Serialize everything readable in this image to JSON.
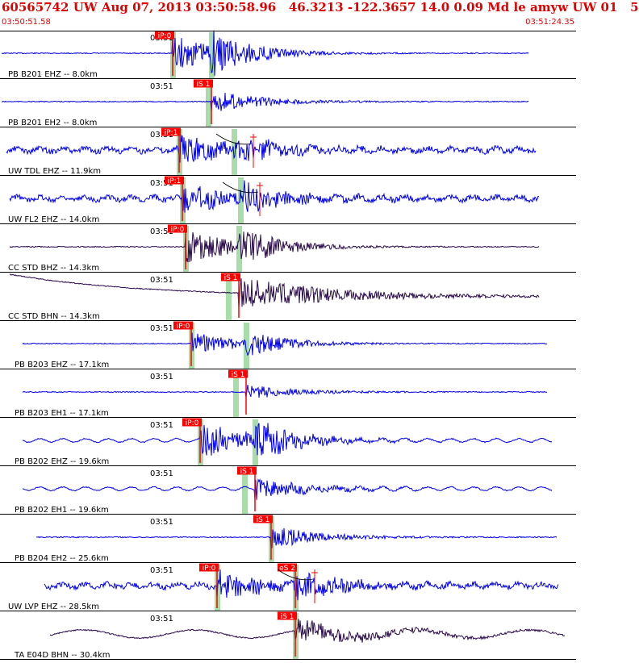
{
  "header": {
    "title": "60565742 UW Aug 07, 2013 03:50:58.96   46.3213 -122.3657 14.0 0.09 Md le amyw UW 01   5",
    "start_time": "03:50:51.58",
    "end_time": "03:51:24.35"
  },
  "colors": {
    "header_text": "#e00000",
    "trace_blue": "#0000ee",
    "trace_dark": "#2a0a4a",
    "pick_box": "#ff0000",
    "pick_text": "#ffffff",
    "window_band": "#a8dca8",
    "divider": "#000000"
  },
  "chart_data": {
    "type": "seismogram",
    "time_start": "03:50:51.58",
    "time_end": "03:51:24.35",
    "time_mark": "03:51",
    "traces": [
      {
        "label": "PB B201 EHZ -- 8.0km",
        "color": "blue",
        "picks": [
          "iP:0"
        ],
        "phase_p": true,
        "theoretical_s": false,
        "amp": "large"
      },
      {
        "label": "PB B201 EH2 -- 8.0km",
        "color": "blue",
        "picks": [
          "iS 1"
        ],
        "phase_p": false,
        "theoretical_s": false,
        "amp": "medium"
      },
      {
        "label": "UW TDL EHZ -- 11.9km",
        "color": "blue",
        "picks": [
          "iP:1"
        ],
        "phase_p": true,
        "theoretical_s": true,
        "amp": "noisy"
      },
      {
        "label": "UW FL2 EHZ -- 14.0km",
        "color": "blue",
        "picks": [
          "iP:1"
        ],
        "phase_p": true,
        "theoretical_s": true,
        "amp": "noisy"
      },
      {
        "label": "CC STD BHZ -- 14.3km",
        "color": "dark",
        "picks": [
          "iP:0"
        ],
        "phase_p": true,
        "theoretical_s": false,
        "amp": "large"
      },
      {
        "label": "CC STD BHN -- 14.3km",
        "color": "dark",
        "picks": [
          "iS 1"
        ],
        "phase_p": false,
        "theoretical_s": false,
        "amp": "drift"
      },
      {
        "label": "PB B203 EHZ -- 17.1km",
        "color": "blue",
        "picks": [
          "iP:0"
        ],
        "phase_p": true,
        "theoretical_s": false,
        "amp": "medium"
      },
      {
        "label": "PB B203 EH1 -- 17.1km",
        "color": "blue",
        "picks": [
          "iS 1"
        ],
        "phase_p": false,
        "theoretical_s": false,
        "amp": "small"
      },
      {
        "label": "PB B202 EHZ -- 19.6km",
        "color": "blue",
        "picks": [
          "iP:0"
        ],
        "phase_p": true,
        "theoretical_s": false,
        "amp": "large"
      },
      {
        "label": "PB B202 EH1 -- 19.6km",
        "color": "blue",
        "picks": [
          "iS 1"
        ],
        "phase_p": false,
        "theoretical_s": false,
        "amp": "medium"
      },
      {
        "label": "PB B204 EH2 -- 25.6km",
        "color": "blue",
        "picks": [
          "iS 1"
        ],
        "phase_p": false,
        "theoretical_s": false,
        "amp": "medium"
      },
      {
        "label": "UW LVP EHZ -- 28.5km",
        "color": "blue",
        "picks": [
          "iP:0",
          "eS 2"
        ],
        "phase_p": true,
        "theoretical_s": true,
        "amp": "noisy"
      },
      {
        "label": "TA E04D BHN -- 30.4km",
        "color": "dark",
        "picks": [
          "iS 1"
        ],
        "phase_p": false,
        "theoretical_s": false,
        "amp": "long"
      }
    ]
  }
}
